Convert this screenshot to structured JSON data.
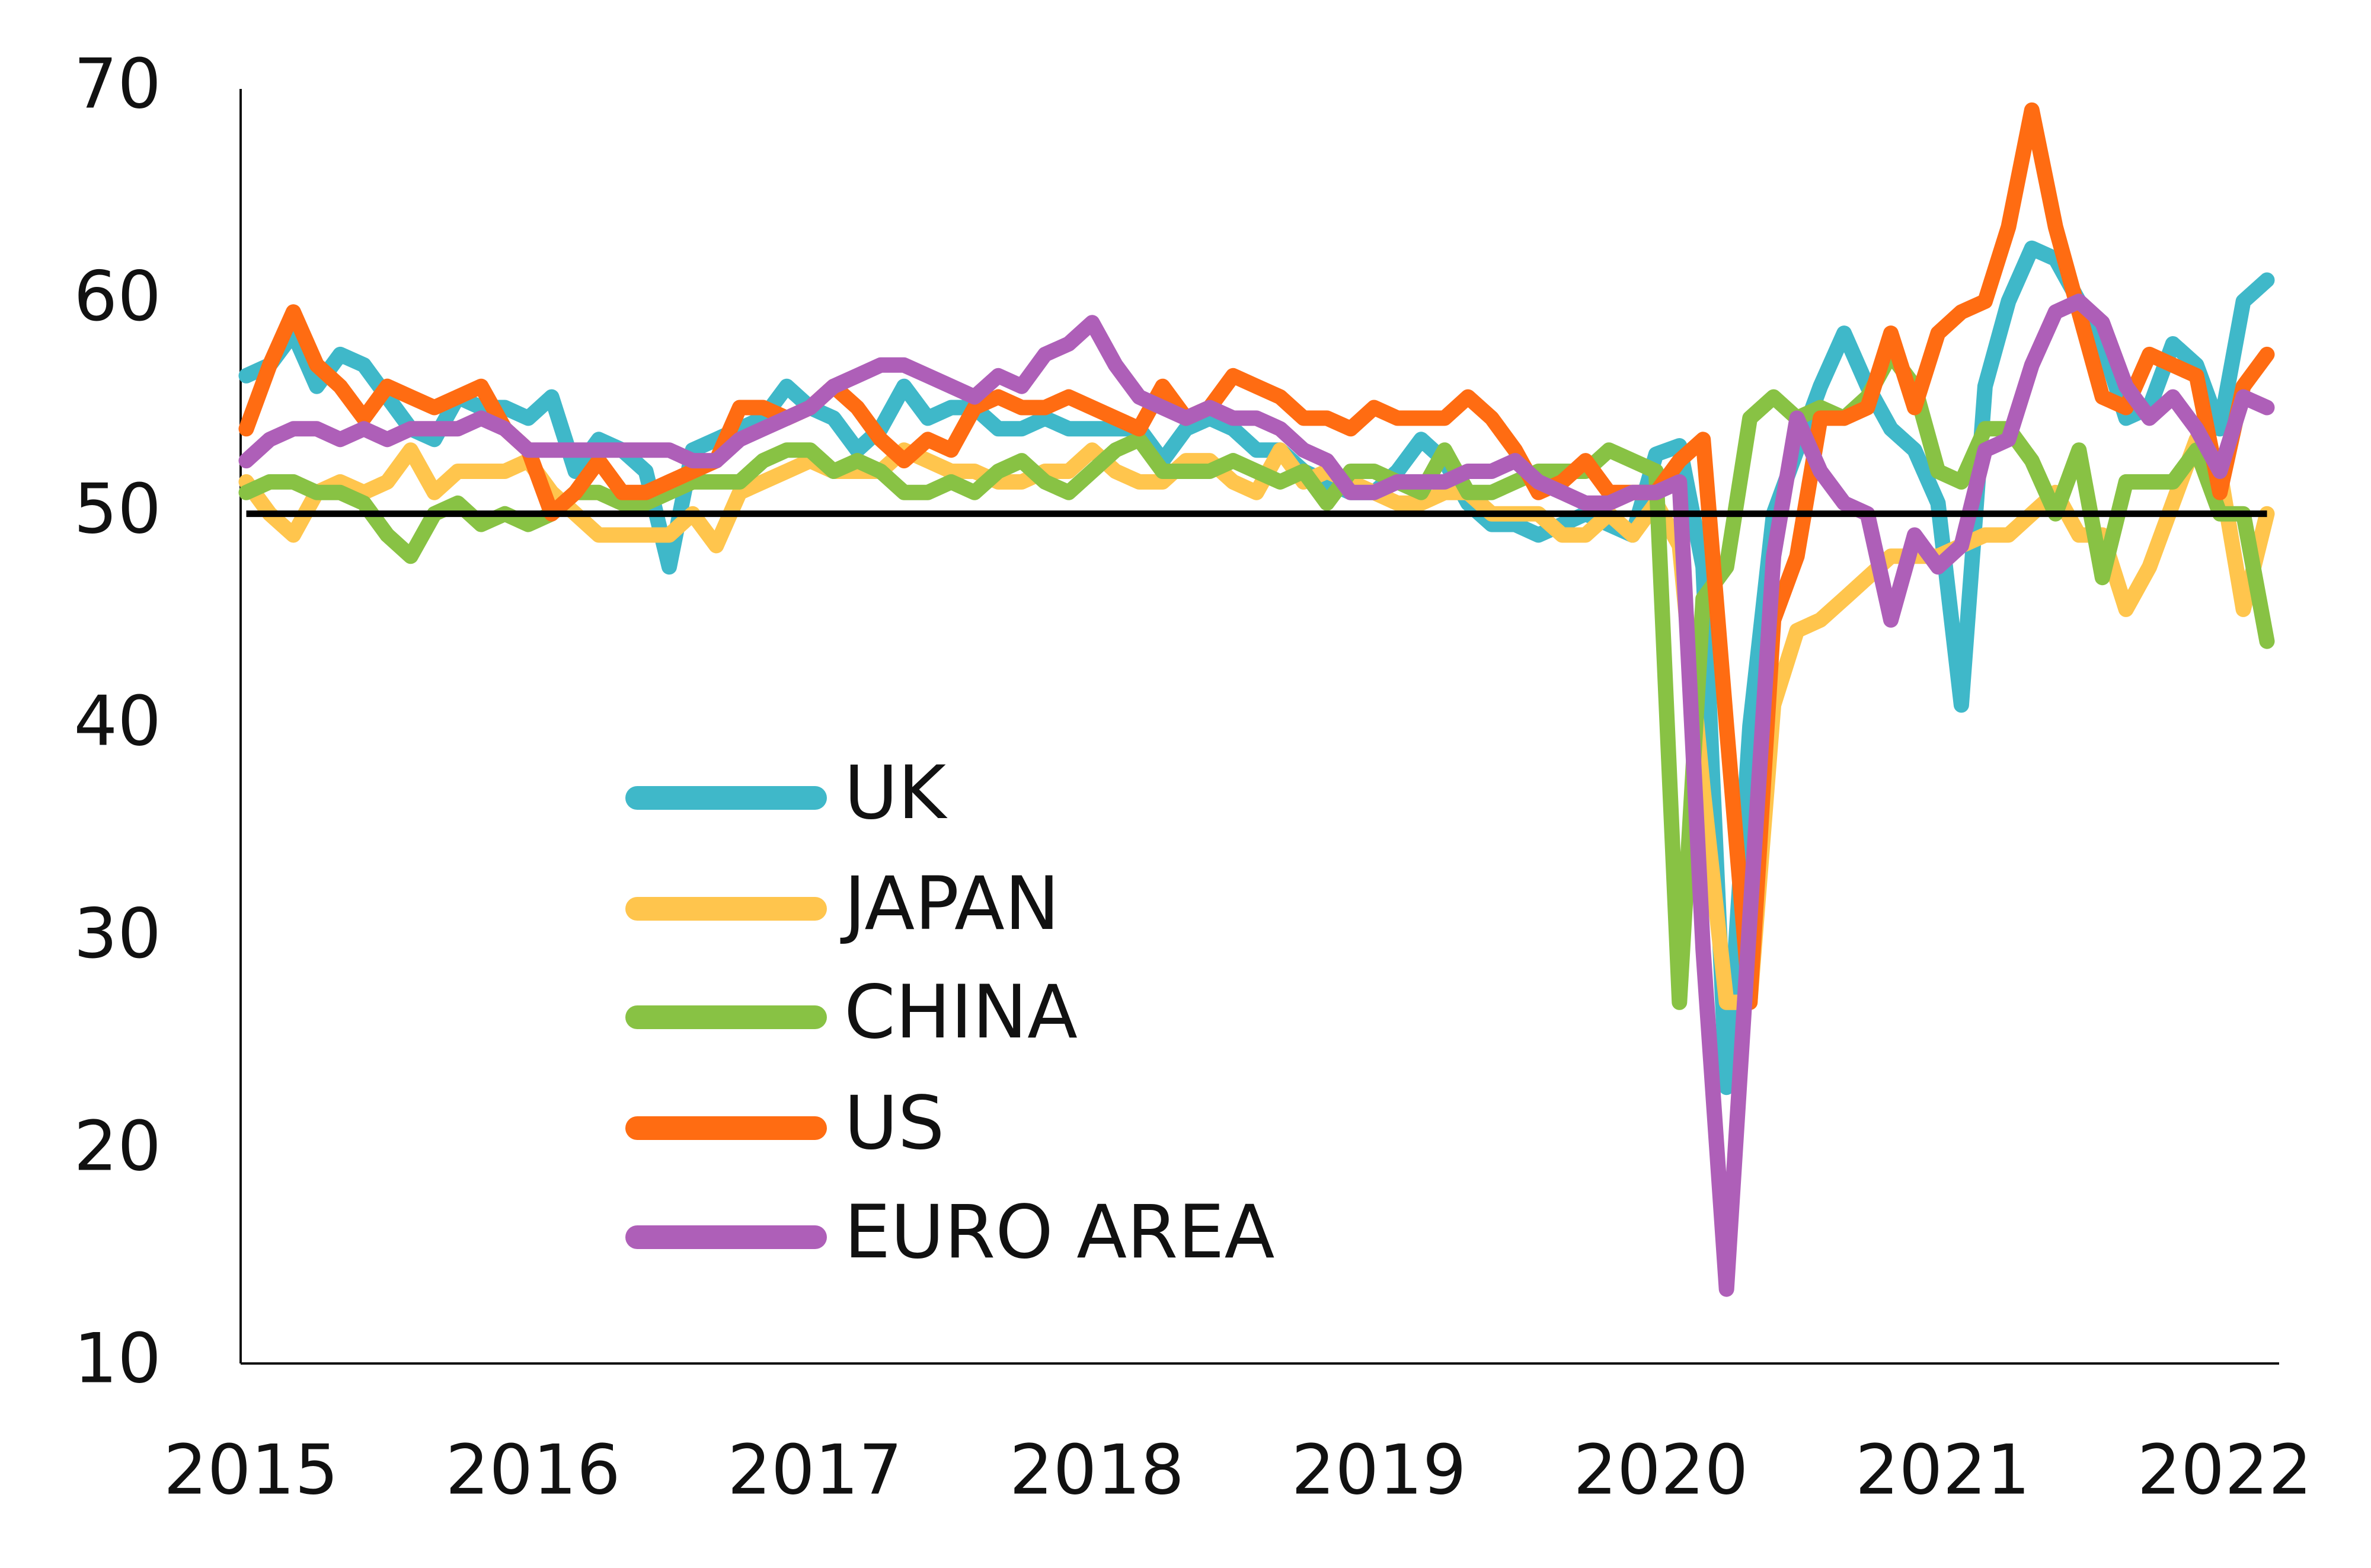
{
  "chart_data": {
    "type": "line",
    "x": [
      2015,
      2015.083,
      2015.167,
      2015.25,
      2015.333,
      2015.417,
      2015.5,
      2015.583,
      2015.667,
      2015.75,
      2015.833,
      2015.917,
      2016,
      2016.083,
      2016.167,
      2016.25,
      2016.333,
      2016.417,
      2016.5,
      2016.583,
      2016.667,
      2016.75,
      2016.833,
      2016.917,
      2017,
      2017.083,
      2017.167,
      2017.25,
      2017.333,
      2017.417,
      2017.5,
      2017.583,
      2017.667,
      2017.75,
      2017.833,
      2017.917,
      2018,
      2018.083,
      2018.167,
      2018.25,
      2018.333,
      2018.417,
      2018.5,
      2018.583,
      2018.667,
      2018.75,
      2018.833,
      2018.917,
      2019,
      2019.083,
      2019.167,
      2019.25,
      2019.333,
      2019.417,
      2019.5,
      2019.583,
      2019.667,
      2019.75,
      2019.833,
      2019.917,
      2020,
      2020.083,
      2020.167,
      2020.25,
      2020.333,
      2020.417,
      2020.5,
      2020.583,
      2020.667,
      2020.75,
      2020.833,
      2020.917,
      2021,
      2021.083,
      2021.167,
      2021.25,
      2021.333,
      2021.417,
      2021.5,
      2021.583,
      2021.667,
      2021.75,
      2021.833,
      2021.917,
      2022,
      2022.083,
      2022.167
    ],
    "series": [
      {
        "name": "UK",
        "color": "#3fb8c9",
        "values": [
          56.5,
          57,
          58.5,
          56,
          57.5,
          57,
          55.5,
          54,
          53.5,
          55.5,
          55,
          55,
          54.5,
          55.5,
          52,
          53.5,
          53,
          52,
          47.5,
          53,
          53.5,
          54,
          54.5,
          56,
          55,
          54.5,
          53,
          54,
          56,
          54.5,
          55,
          55,
          54,
          54,
          54.5,
          54,
          54,
          54,
          54,
          52.5,
          54,
          54.5,
          54,
          53,
          53,
          52,
          51.5,
          51,
          51,
          52,
          53.5,
          52.5,
          50.5,
          49.5,
          49.5,
          49,
          49.5,
          50,
          49.5,
          49,
          52.8,
          53.2,
          47.5,
          23,
          40,
          50,
          53,
          56,
          58.5,
          56,
          54,
          53,
          50.5,
          41,
          56,
          60,
          62.5,
          62,
          60,
          58,
          54.5,
          55,
          58,
          57,
          54,
          60,
          61
        ]
      },
      {
        "name": "JAPAN",
        "color": "#ffc54d",
        "values": [
          51.5,
          50,
          49,
          51,
          51.5,
          51,
          51.5,
          53,
          51,
          52,
          52,
          52,
          52.5,
          51,
          50,
          49,
          49,
          49,
          49,
          50,
          48.5,
          51,
          51.5,
          52,
          52.5,
          52,
          52,
          52,
          53,
          52.5,
          52,
          52,
          51.5,
          51.5,
          52,
          52,
          53,
          52,
          51.5,
          51.5,
          52.5,
          52.5,
          51.5,
          51,
          53,
          51.5,
          52,
          51.5,
          51,
          50.5,
          50.5,
          51,
          51,
          50,
          50,
          50,
          49,
          49,
          50,
          49,
          50.5,
          48.5,
          37,
          27,
          27,
          41,
          44.5,
          45,
          46,
          47,
          48,
          48,
          48,
          48.5,
          49,
          49,
          50,
          51,
          49,
          49,
          45.5,
          47.5,
          50.5,
          53.5,
          52,
          45.5,
          50
        ]
      },
      {
        "name": "CHINA",
        "color": "#88c244",
        "values": [
          51,
          51.5,
          51.5,
          51,
          51,
          50.5,
          49,
          48,
          50,
          50.5,
          49.5,
          50,
          49.5,
          50,
          51,
          51,
          50.5,
          50.5,
          51,
          51.5,
          51.5,
          51.5,
          52.5,
          53,
          53,
          52,
          52.5,
          52,
          51,
          51,
          51.5,
          51,
          52,
          52.5,
          51.5,
          51,
          52,
          53,
          53.5,
          52,
          52,
          52,
          52.5,
          52,
          51.5,
          52,
          50.5,
          52,
          52,
          51.5,
          51,
          53,
          51,
          51,
          51.5,
          52,
          52,
          52,
          53,
          52.5,
          52,
          27,
          46,
          47.5,
          54.5,
          55.5,
          54.5,
          55,
          54.5,
          55.5,
          57.5,
          56,
          52,
          51.5,
          54,
          54,
          52.5,
          50,
          53,
          47,
          51.5,
          51.5,
          51.5,
          53,
          50,
          50,
          44
        ]
      },
      {
        "name": "US",
        "color": "#ff6c12",
        "values": [
          54,
          57,
          59.5,
          57,
          56,
          54.5,
          56,
          55.5,
          55,
          55.5,
          56,
          54,
          53,
          50,
          51,
          52.5,
          51,
          51,
          51.5,
          52,
          52.5,
          55,
          55,
          54.5,
          55,
          56,
          55,
          53.5,
          52.5,
          53.5,
          53,
          55,
          55.5,
          55,
          55,
          55.5,
          55,
          54.5,
          54,
          56,
          54.5,
          55,
          56.5,
          56,
          55.5,
          54.5,
          54.5,
          54,
          55,
          54.5,
          54.5,
          54.5,
          55.5,
          54.5,
          53,
          51,
          51.5,
          52.5,
          51,
          51,
          51,
          52.5,
          53.5,
          40,
          27,
          45,
          48,
          54.5,
          54.5,
          55,
          58.5,
          55,
          58.5,
          59.5,
          60,
          63.5,
          69,
          63.5,
          59.5,
          55.5,
          55,
          57.5,
          57,
          56.5,
          51,
          56,
          57.5
        ]
      },
      {
        "name": "EURO AREA",
        "color": "#ae5fb8",
        "values": [
          52.5,
          53.5,
          54,
          54,
          53.5,
          54,
          53.5,
          54,
          54,
          54,
          54.5,
          54,
          53,
          53,
          53,
          53,
          53,
          53,
          53,
          52.5,
          52.5,
          53.5,
          54,
          54.5,
          55,
          56,
          56.5,
          57,
          57,
          56.5,
          56,
          55.5,
          56.5,
          56,
          57.5,
          58,
          59,
          57,
          55.5,
          55,
          54.5,
          55,
          54.5,
          54.5,
          54,
          53,
          52.5,
          51,
          51,
          51.5,
          51.5,
          51.5,
          52,
          52,
          52.5,
          51.5,
          51,
          50.5,
          50.5,
          51,
          51,
          51.5,
          29.5,
          13.5,
          31,
          48,
          54.5,
          52,
          50.5,
          50,
          45,
          49,
          47.5,
          48.5,
          53,
          53.5,
          57,
          59.5,
          60,
          59,
          56,
          54.5,
          55.5,
          54,
          52,
          55.5,
          55
        ]
      }
    ],
    "hline": 50,
    "xlim": [
      2014.98,
      2022.21
    ],
    "xticks": [
      2015,
      2016,
      2017,
      2018,
      2019,
      2020,
      2021,
      2022
    ],
    "ylim": [
      10,
      70
    ],
    "yticks": [
      10,
      20,
      30,
      40,
      50,
      60,
      70
    ]
  }
}
